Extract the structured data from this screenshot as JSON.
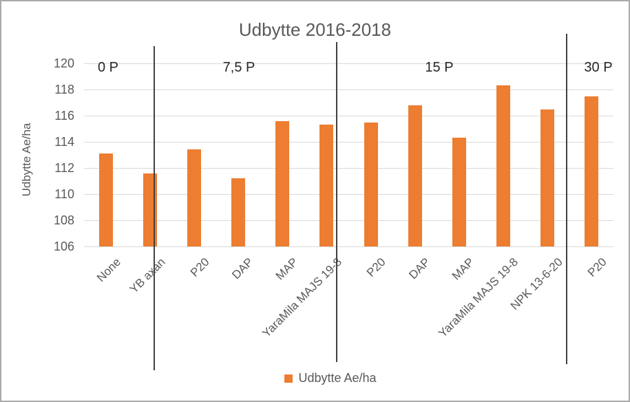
{
  "chart_data": {
    "type": "bar",
    "title": "Udbytte 2016-2018",
    "ylabel": "Udbytte Ae/ha",
    "xlabel": "",
    "ylim": [
      106,
      120
    ],
    "yticks": [
      120,
      118,
      116,
      114,
      112,
      110,
      108,
      106
    ],
    "grid": true,
    "legend": {
      "label": "Udbytte Ae/ha",
      "position": "bottom"
    },
    "categories": [
      "None",
      "YB axan",
      "P20",
      "DAP",
      "MAP",
      "YaraMila MAJS 19-8",
      "P20",
      "DAP",
      "MAP",
      "YaraMila MAJS 19-8",
      "NPK 13-6-20",
      "P20"
    ],
    "values": [
      113.1,
      111.6,
      113.4,
      111.2,
      115.6,
      115.3,
      115.5,
      116.8,
      114.3,
      118.3,
      116.5,
      117.5
    ],
    "groups": [
      {
        "label": "0 P",
        "categories_count": 2
      },
      {
        "label": "7,5 P",
        "categories_count": 4
      },
      {
        "label": "15 P",
        "categories_count": 5
      },
      {
        "label": "30 P",
        "categories_count": 1
      }
    ],
    "colors": {
      "bar": "#ed7d31",
      "gridline": "#d9d9d9",
      "axis_text": "#595959",
      "group_label_text": "#262626",
      "divider": "#404040"
    }
  }
}
